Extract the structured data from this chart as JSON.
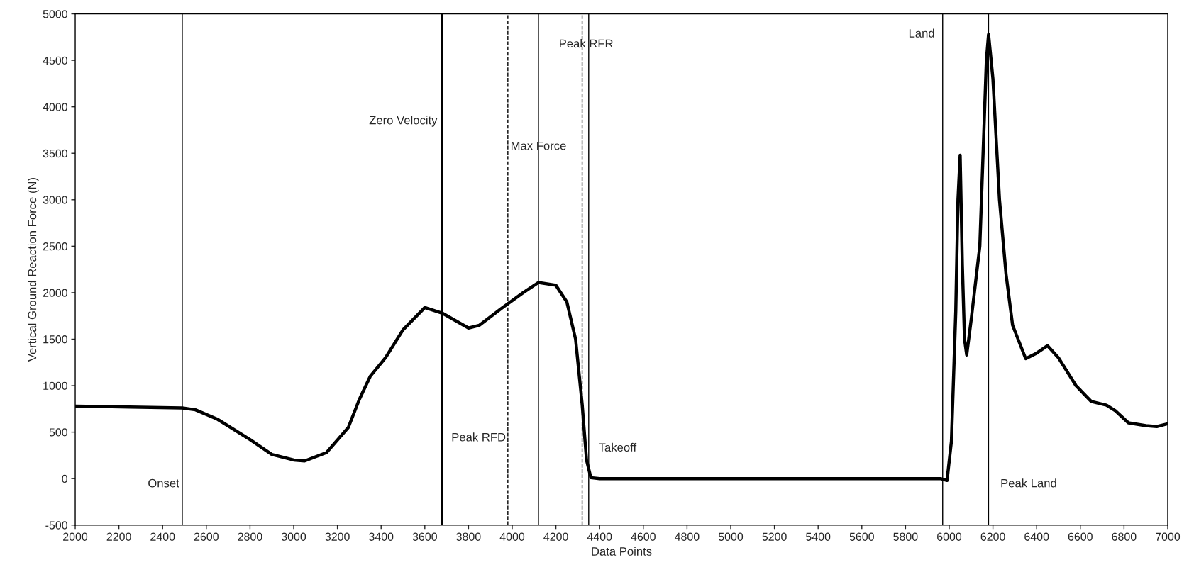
{
  "chart_data": {
    "type": "line",
    "xlabel": "Data Points",
    "ylabel": "Vertical Ground Reaction Force (N)",
    "series": [
      {
        "color": "#000000",
        "x": [
          2000,
          2250,
          2490,
          2550,
          2650,
          2800,
          2900,
          3000,
          3050,
          3150,
          3250,
          3300,
          3350,
          3420,
          3500,
          3600,
          3680,
          3800,
          3850,
          3950,
          4050,
          4120,
          4200,
          4250,
          4290,
          4320,
          4340,
          4360,
          4400,
          5960,
          5990,
          6010,
          6030,
          6040,
          6050,
          6060,
          6070,
          6080,
          6100,
          6140,
          6170,
          6180,
          6200,
          6230,
          6260,
          6290,
          6350,
          6400,
          6450,
          6500,
          6580,
          6650,
          6720,
          6760,
          6820,
          6900,
          6950,
          7000
        ],
        "values": [
          780,
          770,
          760,
          740,
          640,
          420,
          260,
          200,
          190,
          280,
          550,
          850,
          1100,
          1300,
          1600,
          1840,
          1780,
          1620,
          1650,
          1830,
          2000,
          2110,
          2080,
          1900,
          1500,
          800,
          200,
          10,
          0,
          0,
          -20,
          400,
          1800,
          3000,
          3480,
          2300,
          1500,
          1330,
          1700,
          2500,
          4500,
          4780,
          4300,
          3000,
          2200,
          1650,
          1290,
          1350,
          1430,
          1300,
          1000,
          830,
          790,
          730,
          600,
          570,
          560,
          590
        ]
      }
    ],
    "xlim": [
      2000,
      7000
    ],
    "xticks": [
      2000,
      2200,
      2400,
      2600,
      2800,
      3000,
      3200,
      3400,
      3600,
      3800,
      4000,
      4200,
      4400,
      4600,
      4800,
      5000,
      5200,
      5400,
      5600,
      5800,
      6000,
      6200,
      6400,
      6600,
      6800,
      7000
    ],
    "ylim": [
      -500,
      5000
    ],
    "yticks": [
      -500,
      0,
      500,
      1000,
      1500,
      2000,
      2500,
      3000,
      3500,
      4000,
      4500,
      5000
    ],
    "grid": false,
    "marker": "none",
    "line_style": "solid",
    "ref_lines": [
      {
        "axis": "x",
        "value": 2490,
        "label": "Onset"
      },
      {
        "axis": "x",
        "value": 3680,
        "label": "Zero Velocity"
      },
      {
        "axis": "x",
        "value": 3980,
        "label": "Peak RFD",
        "line_style": "dashed"
      },
      {
        "axis": "x",
        "value": 4120,
        "label": "Max Force"
      },
      {
        "axis": "x",
        "value": 4320,
        "label": "Peak RFR",
        "line_style": "dashed"
      },
      {
        "axis": "x",
        "value": 4350,
        "label": "Takeoff"
      },
      {
        "axis": "x",
        "value": 5970,
        "label": "Land"
      },
      {
        "axis": "x",
        "value": 6180,
        "label": "Peak Land"
      }
    ]
  }
}
